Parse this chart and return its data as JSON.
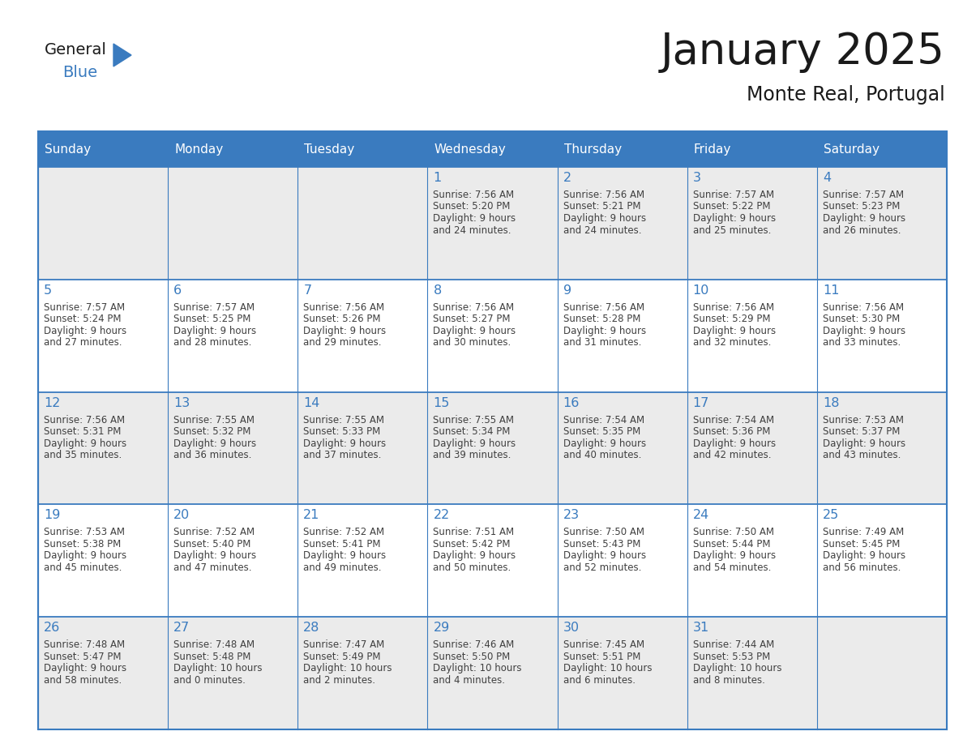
{
  "title": "January 2025",
  "subtitle": "Monte Real, Portugal",
  "header_bg_color": "#3a7bbf",
  "header_text_color": "#ffffff",
  "cell_bg_white": "#ffffff",
  "cell_bg_gray": "#ebebeb",
  "border_color": "#3a7bbf",
  "day_text_color": "#3a7bbf",
  "content_text_color": "#404040",
  "title_color": "#1a1a1a",
  "weekdays": [
    "Sunday",
    "Monday",
    "Tuesday",
    "Wednesday",
    "Thursday",
    "Friday",
    "Saturday"
  ],
  "row_bg": [
    "gray",
    "white",
    "gray",
    "white",
    "gray"
  ],
  "calendar_data": [
    [
      {
        "day": "",
        "sunrise": "",
        "sunset": "",
        "daylight_h": "",
        "daylight_m": ""
      },
      {
        "day": "",
        "sunrise": "",
        "sunset": "",
        "daylight_h": "",
        "daylight_m": ""
      },
      {
        "day": "",
        "sunrise": "",
        "sunset": "",
        "daylight_h": "",
        "daylight_m": ""
      },
      {
        "day": "1",
        "sunrise": "7:56 AM",
        "sunset": "5:20 PM",
        "daylight_h": "9",
        "daylight_m": "24"
      },
      {
        "day": "2",
        "sunrise": "7:56 AM",
        "sunset": "5:21 PM",
        "daylight_h": "9",
        "daylight_m": "24"
      },
      {
        "day": "3",
        "sunrise": "7:57 AM",
        "sunset": "5:22 PM",
        "daylight_h": "9",
        "daylight_m": "25"
      },
      {
        "day": "4",
        "sunrise": "7:57 AM",
        "sunset": "5:23 PM",
        "daylight_h": "9",
        "daylight_m": "26"
      }
    ],
    [
      {
        "day": "5",
        "sunrise": "7:57 AM",
        "sunset": "5:24 PM",
        "daylight_h": "9",
        "daylight_m": "27"
      },
      {
        "day": "6",
        "sunrise": "7:57 AM",
        "sunset": "5:25 PM",
        "daylight_h": "9",
        "daylight_m": "28"
      },
      {
        "day": "7",
        "sunrise": "7:56 AM",
        "sunset": "5:26 PM",
        "daylight_h": "9",
        "daylight_m": "29"
      },
      {
        "day": "8",
        "sunrise": "7:56 AM",
        "sunset": "5:27 PM",
        "daylight_h": "9",
        "daylight_m": "30"
      },
      {
        "day": "9",
        "sunrise": "7:56 AM",
        "sunset": "5:28 PM",
        "daylight_h": "9",
        "daylight_m": "31"
      },
      {
        "day": "10",
        "sunrise": "7:56 AM",
        "sunset": "5:29 PM",
        "daylight_h": "9",
        "daylight_m": "32"
      },
      {
        "day": "11",
        "sunrise": "7:56 AM",
        "sunset": "5:30 PM",
        "daylight_h": "9",
        "daylight_m": "33"
      }
    ],
    [
      {
        "day": "12",
        "sunrise": "7:56 AM",
        "sunset": "5:31 PM",
        "daylight_h": "9",
        "daylight_m": "35"
      },
      {
        "day": "13",
        "sunrise": "7:55 AM",
        "sunset": "5:32 PM",
        "daylight_h": "9",
        "daylight_m": "36"
      },
      {
        "day": "14",
        "sunrise": "7:55 AM",
        "sunset": "5:33 PM",
        "daylight_h": "9",
        "daylight_m": "37"
      },
      {
        "day": "15",
        "sunrise": "7:55 AM",
        "sunset": "5:34 PM",
        "daylight_h": "9",
        "daylight_m": "39"
      },
      {
        "day": "16",
        "sunrise": "7:54 AM",
        "sunset": "5:35 PM",
        "daylight_h": "9",
        "daylight_m": "40"
      },
      {
        "day": "17",
        "sunrise": "7:54 AM",
        "sunset": "5:36 PM",
        "daylight_h": "9",
        "daylight_m": "42"
      },
      {
        "day": "18",
        "sunrise": "7:53 AM",
        "sunset": "5:37 PM",
        "daylight_h": "9",
        "daylight_m": "43"
      }
    ],
    [
      {
        "day": "19",
        "sunrise": "7:53 AM",
        "sunset": "5:38 PM",
        "daylight_h": "9",
        "daylight_m": "45"
      },
      {
        "day": "20",
        "sunrise": "7:52 AM",
        "sunset": "5:40 PM",
        "daylight_h": "9",
        "daylight_m": "47"
      },
      {
        "day": "21",
        "sunrise": "7:52 AM",
        "sunset": "5:41 PM",
        "daylight_h": "9",
        "daylight_m": "49"
      },
      {
        "day": "22",
        "sunrise": "7:51 AM",
        "sunset": "5:42 PM",
        "daylight_h": "9",
        "daylight_m": "50"
      },
      {
        "day": "23",
        "sunrise": "7:50 AM",
        "sunset": "5:43 PM",
        "daylight_h": "9",
        "daylight_m": "52"
      },
      {
        "day": "24",
        "sunrise": "7:50 AM",
        "sunset": "5:44 PM",
        "daylight_h": "9",
        "daylight_m": "54"
      },
      {
        "day": "25",
        "sunrise": "7:49 AM",
        "sunset": "5:45 PM",
        "daylight_h": "9",
        "daylight_m": "56"
      }
    ],
    [
      {
        "day": "26",
        "sunrise": "7:48 AM",
        "sunset": "5:47 PM",
        "daylight_h": "9",
        "daylight_m": "58"
      },
      {
        "day": "27",
        "sunrise": "7:48 AM",
        "sunset": "5:48 PM",
        "daylight_h": "10",
        "daylight_m": "0"
      },
      {
        "day": "28",
        "sunrise": "7:47 AM",
        "sunset": "5:49 PM",
        "daylight_h": "10",
        "daylight_m": "2"
      },
      {
        "day": "29",
        "sunrise": "7:46 AM",
        "sunset": "5:50 PM",
        "daylight_h": "10",
        "daylight_m": "4"
      },
      {
        "day": "30",
        "sunrise": "7:45 AM",
        "sunset": "5:51 PM",
        "daylight_h": "10",
        "daylight_m": "6"
      },
      {
        "day": "31",
        "sunrise": "7:44 AM",
        "sunset": "5:53 PM",
        "daylight_h": "10",
        "daylight_m": "8"
      },
      {
        "day": "",
        "sunrise": "",
        "sunset": "",
        "daylight_h": "",
        "daylight_m": ""
      }
    ]
  ],
  "logo_text1": "General",
  "logo_text2": "Blue",
  "logo_color1": "#1a1a1a",
  "logo_color2": "#3a7bbf",
  "logo_triangle_color": "#3a7bbf"
}
